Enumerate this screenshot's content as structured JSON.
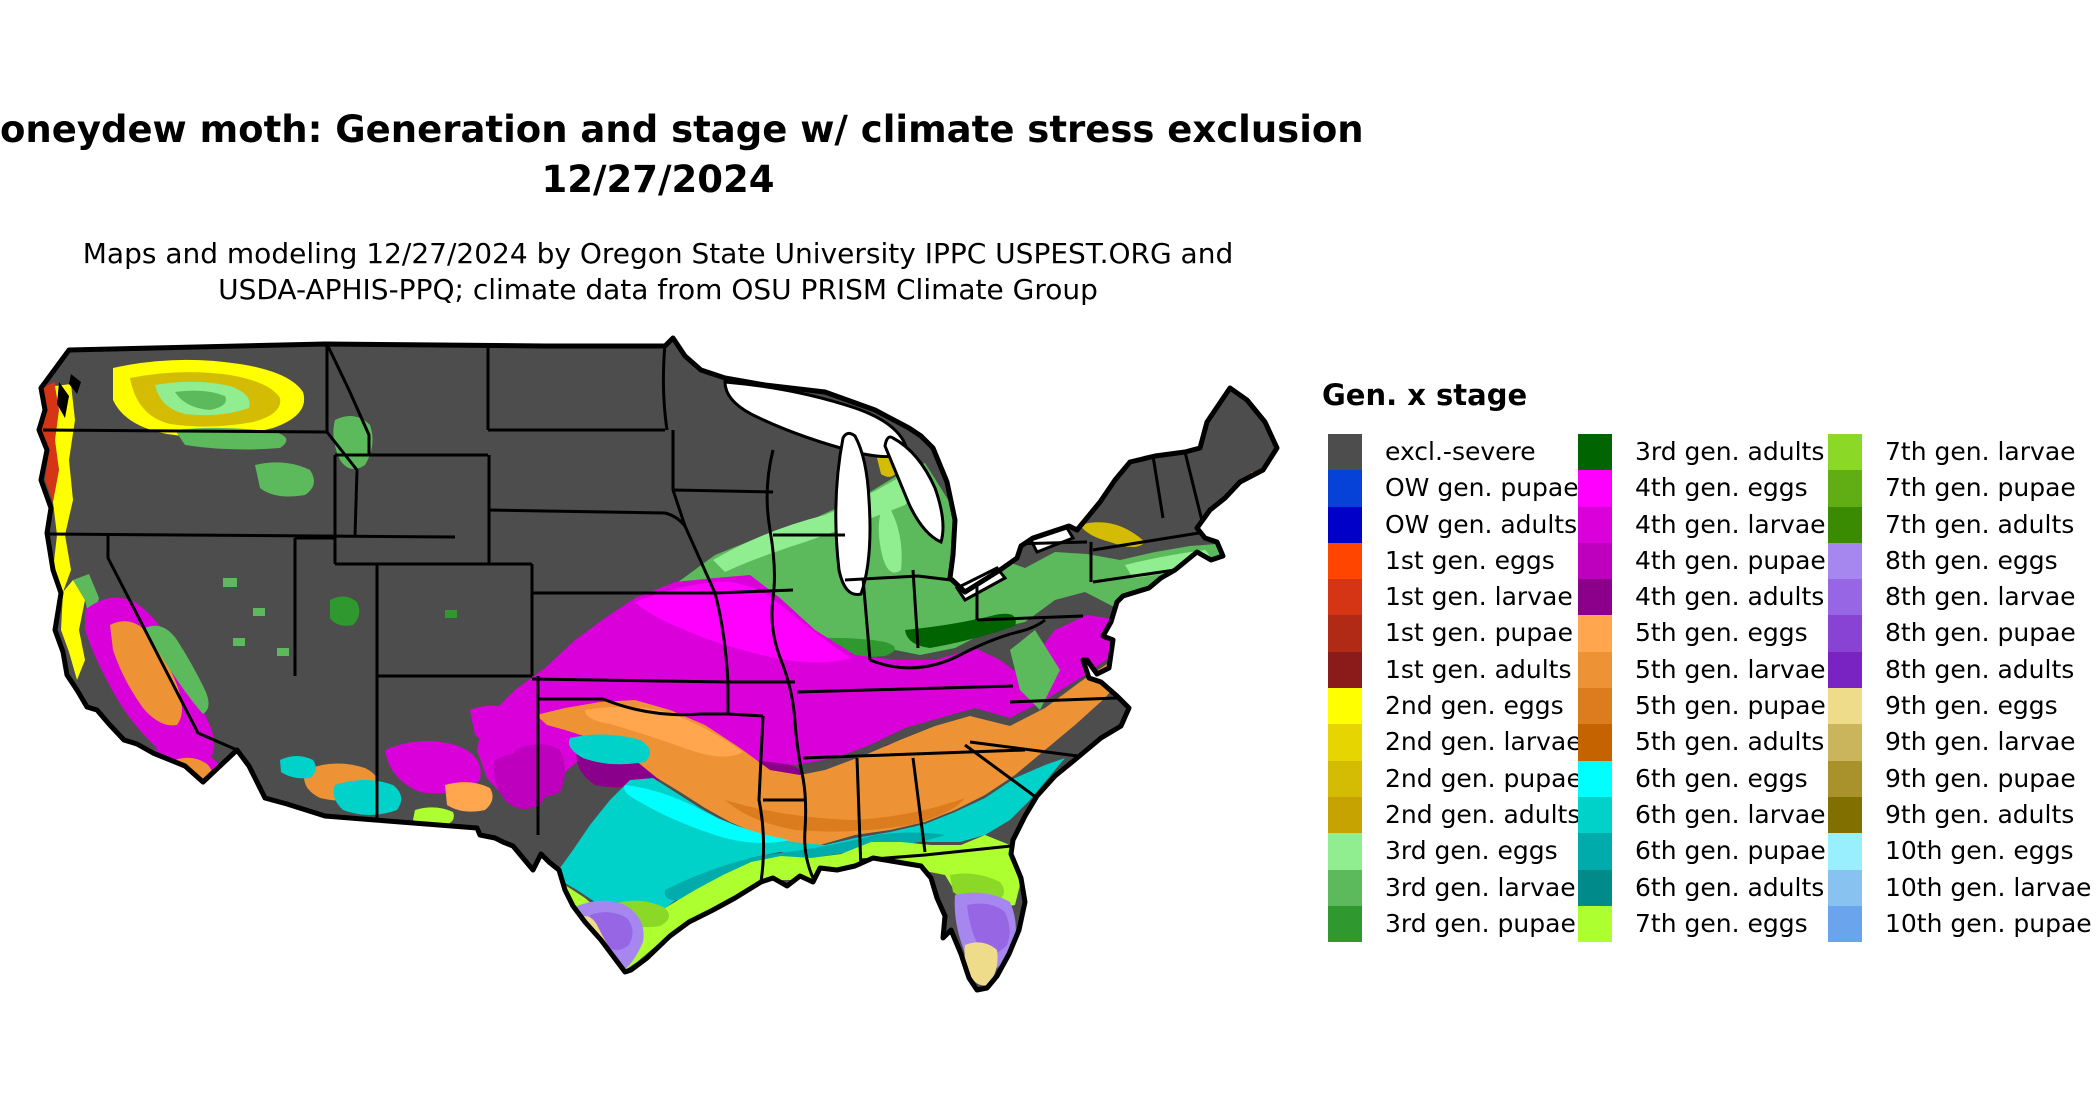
{
  "title": {
    "line1": "oneydew moth: Generation and stage w/ climate stress exclusion",
    "line2": "12/27/2024"
  },
  "subtitle": {
    "line1": "Maps and modeling 12/27/2024 by Oregon State University IPPC USPEST.ORG and",
    "line2": "USDA-APHIS-PPQ; climate data from OSU PRISM Climate Group"
  },
  "legend": {
    "title": "Gen. x stage",
    "columns": [
      [
        {
          "label": "excl.-severe",
          "color": "#4D4D4D"
        },
        {
          "label": "OW gen. pupae",
          "color": "#0642D8"
        },
        {
          "label": "OW gen. adults",
          "color": "#0000C8"
        },
        {
          "label": "1st gen. eggs",
          "color": "#FF4500"
        },
        {
          "label": "1st gen. larvae",
          "color": "#D53514"
        },
        {
          "label": "1st gen. pupae",
          "color": "#B02A15"
        },
        {
          "label": "1st gen. adults",
          "color": "#8B1A1A"
        },
        {
          "label": "2nd gen. eggs",
          "color": "#FFFF00"
        },
        {
          "label": "2nd gen. larvae",
          "color": "#E6D500"
        },
        {
          "label": "2nd gen. pupae",
          "color": "#D4BC04"
        },
        {
          "label": "2nd gen. adults",
          "color": "#C7A302"
        },
        {
          "label": "3rd gen. eggs",
          "color": "#90EE90"
        },
        {
          "label": "3rd gen. larvae",
          "color": "#5CBA5C"
        },
        {
          "label": "3rd gen. pupae",
          "color": "#2F992F"
        }
      ],
      [
        {
          "label": "3rd gen. adults",
          "color": "#006400"
        },
        {
          "label": "4th gen. eggs",
          "color": "#FF00FF"
        },
        {
          "label": "4th gen. larvae",
          "color": "#DA00DA"
        },
        {
          "label": "4th gen. pupae",
          "color": "#BE00BE"
        },
        {
          "label": "4th gen. adults",
          "color": "#8B008B"
        },
        {
          "label": "5th gen. eggs",
          "color": "#FFA64F"
        },
        {
          "label": "5th gen. larvae",
          "color": "#EE9335"
        },
        {
          "label": "5th gen. pupae",
          "color": "#DB7D1E"
        },
        {
          "label": "5th gen. adults",
          "color": "#C56300"
        },
        {
          "label": "6th gen. eggs",
          "color": "#00FFFF"
        },
        {
          "label": "6th gen. larvae",
          "color": "#00D1C9"
        },
        {
          "label": "6th gen. pupae",
          "color": "#00ABAC"
        },
        {
          "label": "6th gen. adults",
          "color": "#008B8B"
        },
        {
          "label": "7th gen. eggs",
          "color": "#ADFF2F"
        }
      ],
      [
        {
          "label": "7th gen. larvae",
          "color": "#8BD926"
        },
        {
          "label": "7th gen. pupae",
          "color": "#60AD14"
        },
        {
          "label": "7th gen. adults",
          "color": "#3A8A02"
        },
        {
          "label": "8th gen. eggs",
          "color": "#A687F0"
        },
        {
          "label": "8th gen. larvae",
          "color": "#9766E4"
        },
        {
          "label": "8th gen. pupae",
          "color": "#8843D4"
        },
        {
          "label": "8th gen. adults",
          "color": "#7823C2"
        },
        {
          "label": "9th gen. eggs",
          "color": "#EEDC8B"
        },
        {
          "label": "9th gen. larvae",
          "color": "#CBB55C"
        },
        {
          "label": "9th gen. pupae",
          "color": "#A9922C"
        },
        {
          "label": "9th gen. adults",
          "color": "#816F00"
        },
        {
          "label": "10th gen. eggs",
          "color": "#99EFFD"
        },
        {
          "label": "10th gen. larvae",
          "color": "#88C2F0"
        },
        {
          "label": "10th gen. pupae",
          "color": "#6AA4ED"
        }
      ]
    ]
  },
  "palette": {
    "base_gray": "#4D4D4D",
    "lake_white": "#FFFFFF",
    "water_black": "#000000",
    "border_black": "#000000",
    "green_light": "#90EE90",
    "green_mid": "#5CBA5C",
    "green_dark": "#2F992F",
    "green_darkest": "#006400",
    "magenta_bright": "#FF00FF",
    "magenta_mid": "#DA00DA",
    "magenta_deep": "#BE00BE",
    "magenta_dark": "#8B008B",
    "orange_light": "#FFA64F",
    "orange_mid": "#EE9335",
    "orange_deep": "#DB7D1E",
    "cyan_bright": "#00FFFF",
    "cyan_mid": "#00D1C9",
    "cyan_deep": "#00ABAC",
    "lime_bright": "#ADFF2F",
    "lime_mid": "#8BD926",
    "purple_light": "#A687F0",
    "purple_mid": "#9766E4",
    "tan_light": "#EEDC8B",
    "yellow": "#FFFF00",
    "yellow_deep": "#E6D500",
    "gold": "#D4BC04",
    "red_orange": "#FF4500",
    "red_mid": "#D53514",
    "red_dark": "#B02A15",
    "sky_light": "#99EFFD"
  }
}
